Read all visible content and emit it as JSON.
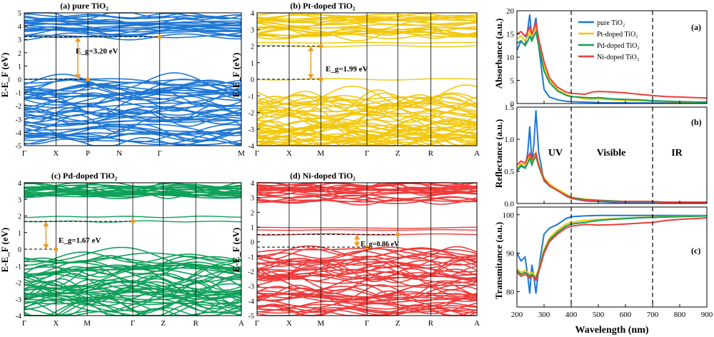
{
  "chart_data": [
    {
      "type": "line",
      "panel": "a",
      "title": "(a) pure TiO₂",
      "ylabel": "E-E_F (eV)",
      "ylim": [
        -5,
        5
      ],
      "yticks": [
        5,
        4,
        3,
        2,
        1,
        0,
        -1,
        -2,
        -3,
        -4,
        -5
      ],
      "kpoints": [
        "Γ",
        "X",
        "P",
        "N",
        "Γ",
        "M"
      ],
      "kpoint_positions": [
        0,
        0.146,
        0.293,
        0.438,
        0.624,
        1.0
      ],
      "band_color": "#1f77d4",
      "cbm": {
        "kpoint": "Γ",
        "energy": 3.2
      },
      "vbm": {
        "kpoint": "P",
        "energy": 0.0
      },
      "gap_label": "E_g=3.20 eV",
      "valence_band_range": [
        -4.8,
        0.0
      ],
      "conduction_band_range": [
        3.2,
        4.85
      ]
    },
    {
      "type": "line",
      "panel": "b",
      "title": "(b) Pt-doped TiO₂",
      "ylabel": "E-E_F (eV)",
      "ylim": [
        -4,
        4
      ],
      "yticks": [
        4,
        3,
        2,
        1,
        0,
        -1,
        -2,
        -3,
        -4
      ],
      "kpoints": [
        "Γ",
        "X",
        "M",
        "Γ",
        "Z",
        "R",
        "A"
      ],
      "kpoint_positions": [
        0,
        0.146,
        0.29,
        0.5,
        0.64,
        0.79,
        1.0
      ],
      "band_color": "#f2c80f",
      "cbm": {
        "kpoint": "M",
        "energy": 1.99
      },
      "vbm": {
        "kpoint": "M",
        "energy": 0.0
      },
      "gap_label": "E_g=1.99 eV",
      "valence_band_range": [
        -4.0,
        -0.85
      ],
      "conduction_band_range": [
        2.6,
        3.95
      ],
      "impurity_levels": [
        0.0,
        2.0,
        2.2
      ]
    },
    {
      "type": "line",
      "panel": "c",
      "title": "(c) Pd-doped TiO₂",
      "ylabel": "E-E_F (eV)",
      "ylim": [
        -4,
        4
      ],
      "yticks": [
        4,
        3,
        2,
        1,
        0,
        -1,
        -2,
        -3,
        -4
      ],
      "kpoints": [
        "Γ",
        "X",
        "M",
        "Γ",
        "Z",
        "R",
        "A"
      ],
      "kpoint_positions": [
        0,
        0.146,
        0.29,
        0.5,
        0.64,
        0.79,
        1.0
      ],
      "band_color": "#10a05a",
      "cbm": {
        "kpoint": "Γ",
        "energy": 1.67
      },
      "vbm": {
        "kpoint": "X",
        "energy": 0.0
      },
      "gap_label": "E_g=1.67 eV",
      "valence_band_range": [
        -4.0,
        -0.2
      ],
      "conduction_band_range": [
        3.2,
        3.9
      ],
      "impurity_levels": [
        1.67,
        1.95
      ]
    },
    {
      "type": "line",
      "panel": "d",
      "title": "(d) Ni-doped TiO₂",
      "ylabel": "E-E_F (eV)",
      "ylim": [
        -5,
        4
      ],
      "yticks": [
        4,
        3,
        2,
        1,
        0,
        -1,
        -2,
        -3,
        -4,
        -5
      ],
      "kpoints": [
        "Γ",
        "X",
        "M",
        "Γ",
        "Z",
        "R",
        "A"
      ],
      "kpoint_positions": [
        0,
        0.146,
        0.29,
        0.5,
        0.64,
        0.79,
        1.0
      ],
      "band_color": "#ef3b3b",
      "cbm": {
        "kpoint": "Z",
        "energy": 0.5
      },
      "vbm": {
        "kpoint": "Γ",
        "energy": -0.36
      },
      "gap_label": "E_g=0.86 eV",
      "valence_band_range": [
        -5.0,
        -0.5
      ],
      "conduction_band_range": [
        2.7,
        4.0
      ],
      "impurity_levels": [
        0.5,
        0.8,
        0.95
      ]
    },
    {
      "type": "line",
      "panel": "a",
      "tag": "(a)",
      "ylabel": "Absorbance (a.u.)",
      "ylim": [
        0,
        20
      ],
      "yticks": [
        0,
        5,
        10,
        15,
        20
      ],
      "xlim": [
        200,
        900
      ],
      "x": [
        200,
        215,
        230,
        240,
        247,
        255,
        262,
        270,
        280,
        300,
        320,
        350,
        380,
        400,
        450,
        480,
        500,
        550,
        600,
        650,
        700,
        750,
        800,
        850,
        900
      ],
      "series": [
        {
          "name": "pure TiO₂",
          "color": "#1f77d4",
          "values": [
            11.5,
            13.5,
            12.5,
            16,
            19.2,
            14,
            16,
            18.5,
            12.5,
            3,
            1.4,
            0.8,
            0.5,
            0.4,
            0.3,
            0.25,
            0.2,
            0.15,
            0.15,
            0.1,
            0.1,
            0.1,
            0.1,
            0.1,
            0.1
          ]
        },
        {
          "name": "Pt-doped TiO₂",
          "color": "#f2c80f",
          "values": [
            14,
            14.5,
            13.5,
            14.5,
            15.5,
            14.5,
            15.5,
            16.5,
            13.5,
            8,
            5,
            3,
            2,
            1.6,
            1.0,
            0.9,
            1.0,
            0.8,
            0.7,
            0.6,
            0.5,
            0.4,
            0.35,
            0.3,
            0.3
          ]
        },
        {
          "name": "Pd-doped TiO₂",
          "color": "#10a05a",
          "values": [
            13,
            13.5,
            12.5,
            13.5,
            14.5,
            13.5,
            14.5,
            15.5,
            12.5,
            7,
            4.5,
            2.7,
            1.8,
            1.5,
            1.3,
            1.2,
            1.3,
            1.0,
            0.9,
            0.8,
            0.6,
            0.5,
            0.4,
            0.35,
            0.3
          ]
        },
        {
          "name": "Ni-doped TiO₂",
          "color": "#ef3b3b",
          "values": [
            15,
            15.5,
            14.5,
            15.5,
            16.5,
            15,
            16,
            17.5,
            14,
            9,
            5.5,
            3.5,
            2.5,
            2.2,
            2.0,
            2.5,
            2.6,
            2.5,
            2.3,
            2.0,
            1.7,
            1.5,
            1.4,
            1.3,
            1.2
          ]
        }
      ],
      "legend": "top-right"
    },
    {
      "type": "line",
      "panel": "b",
      "tag": "(b)",
      "ylabel": "Reflectance (a.u.)",
      "ylim": [
        0,
        1.5
      ],
      "yticks": [
        0.0,
        0.5,
        1.0,
        1.5
      ],
      "xlim": [
        200,
        900
      ],
      "x": [
        200,
        215,
        230,
        240,
        247,
        255,
        262,
        270,
        280,
        300,
        320,
        350,
        380,
        400,
        450,
        500,
        550,
        600,
        650,
        700,
        750,
        800,
        850,
        900
      ],
      "series": [
        {
          "name": "pure TiO₂",
          "color": "#1f77d4",
          "values": [
            0.5,
            0.6,
            0.55,
            0.8,
            1.2,
            0.65,
            0.9,
            1.45,
            0.8,
            0.35,
            0.28,
            0.22,
            0.12,
            0.08,
            0.04,
            0.03,
            0.02,
            0.02,
            0.02,
            0.02,
            0.02,
            0.02,
            0.02,
            0.02
          ]
        },
        {
          "name": "Pt-doped TiO₂",
          "color": "#f2c80f",
          "values": [
            0.55,
            0.62,
            0.6,
            0.68,
            0.75,
            0.65,
            0.72,
            0.8,
            0.62,
            0.4,
            0.3,
            0.22,
            0.15,
            0.1,
            0.07,
            0.05,
            0.04,
            0.03,
            0.03,
            0.03,
            0.02,
            0.02,
            0.02,
            0.02
          ]
        },
        {
          "name": "Pd-doped TiO₂",
          "color": "#10a05a",
          "values": [
            0.5,
            0.58,
            0.55,
            0.63,
            0.7,
            0.6,
            0.68,
            0.74,
            0.58,
            0.36,
            0.27,
            0.2,
            0.13,
            0.09,
            0.06,
            0.05,
            0.04,
            0.03,
            0.03,
            0.03,
            0.02,
            0.02,
            0.02,
            0.02
          ]
        },
        {
          "name": "Ni-doped TiO₂",
          "color": "#ef3b3b",
          "values": [
            0.6,
            0.66,
            0.63,
            0.72,
            0.78,
            0.68,
            0.75,
            0.78,
            0.6,
            0.38,
            0.28,
            0.2,
            0.12,
            0.08,
            0.05,
            0.04,
            0.03,
            0.03,
            0.03,
            0.03,
            0.02,
            0.02,
            0.02,
            0.02
          ]
        }
      ],
      "regions": [
        {
          "label": "UV",
          "x_from": 200,
          "x_to": 400
        },
        {
          "label": "Visible",
          "x_from": 400,
          "x_to": 700
        },
        {
          "label": "IR",
          "x_from": 700,
          "x_to": 900
        }
      ]
    },
    {
      "type": "line",
      "panel": "c",
      "tag": "(c)",
      "ylabel": "Transmitance (a.u.)",
      "xlabel": "Wavelength (nm)",
      "ylim": [
        76,
        102
      ],
      "yticks": [
        80,
        90,
        100
      ],
      "xlim": [
        200,
        900
      ],
      "xticks": [
        200,
        300,
        400,
        500,
        600,
        700,
        800,
        900
      ],
      "x": [
        200,
        215,
        230,
        240,
        247,
        255,
        262,
        270,
        280,
        300,
        320,
        350,
        380,
        400,
        450,
        500,
        550,
        600,
        650,
        700,
        750,
        800,
        850,
        900
      ],
      "series": [
        {
          "name": "pure TiO₂",
          "color": "#1f77d4",
          "values": [
            90,
            88,
            89,
            84,
            79.5,
            87,
            84,
            79.5,
            86,
            95,
            96.5,
            97.5,
            99,
            99.5,
            99.7,
            99.8,
            99.8,
            99.8,
            99.8,
            99.8,
            99.8,
            99.8,
            99.8,
            99.8
          ]
        },
        {
          "name": "Pt-doped TiO₂",
          "color": "#f2c80f",
          "values": [
            86,
            85,
            85.5,
            85,
            84.5,
            85,
            84.5,
            84,
            86,
            91,
            94,
            96,
            97.5,
            98,
            98.5,
            98.8,
            99,
            99.2,
            99.3,
            99.4,
            99.5,
            99.6,
            99.7,
            99.8
          ]
        },
        {
          "name": "Pd-doped TiO₂",
          "color": "#10a05a",
          "values": [
            85.5,
            84.5,
            85,
            84.5,
            84,
            84.5,
            84,
            83.5,
            85.5,
            90.5,
            93.5,
            95.5,
            97,
            97.6,
            98,
            98.5,
            98.8,
            99,
            99.2,
            99.3,
            99.4,
            99.5,
            99.6,
            99.7
          ]
        },
        {
          "name": "Ni-doped TiO₂",
          "color": "#ef3b3b",
          "values": [
            85,
            84,
            84.5,
            84,
            83.5,
            84,
            83.8,
            83,
            85,
            90,
            93,
            95,
            96.5,
            97,
            97.5,
            97.3,
            97.4,
            97.6,
            97.8,
            98,
            98.5,
            98.8,
            99,
            99.2
          ]
        }
      ]
    }
  ]
}
